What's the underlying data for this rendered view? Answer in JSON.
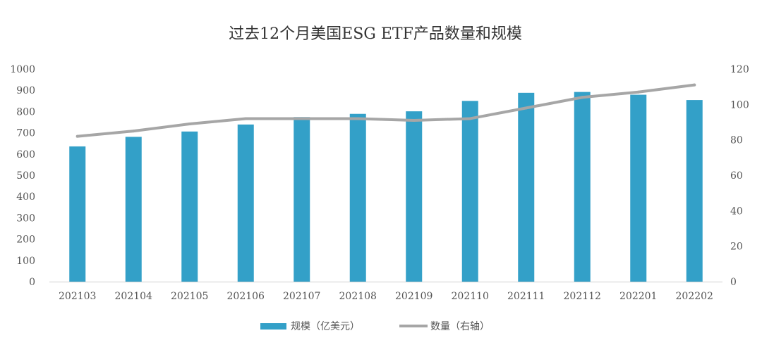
{
  "chart_data": {
    "type": "bar",
    "title": "过去12个月美国ESG ETF产品数量和规模",
    "categories": [
      "202103",
      "202104",
      "202105",
      "202106",
      "202107",
      "202108",
      "202109",
      "202110",
      "202111",
      "202112",
      "202201",
      "202202"
    ],
    "series": [
      {
        "name": "规模（亿美元）",
        "type": "bar",
        "axis": "left",
        "color": "#33A0C8",
        "values": [
          636,
          681,
          706,
          739,
          774,
          789,
          801,
          850,
          888,
          892,
          879,
          854
        ]
      },
      {
        "name": "数量（右轴）",
        "type": "line",
        "axis": "right",
        "color": "#A6A6A6",
        "values": [
          82,
          85,
          89,
          92,
          92,
          92,
          91,
          92,
          98,
          104,
          107,
          111
        ]
      }
    ],
    "y_left": {
      "min": 0,
      "max": 1000,
      "step": 100,
      "ticks": [
        "0",
        "100",
        "200",
        "300",
        "400",
        "500",
        "600",
        "700",
        "800",
        "900",
        "1000"
      ]
    },
    "y_right": {
      "min": 0,
      "max": 120,
      "step": 20,
      "ticks": [
        "0",
        "20",
        "40",
        "60",
        "80",
        "100",
        "120"
      ]
    },
    "grid": false,
    "legend_position": "bottom"
  }
}
